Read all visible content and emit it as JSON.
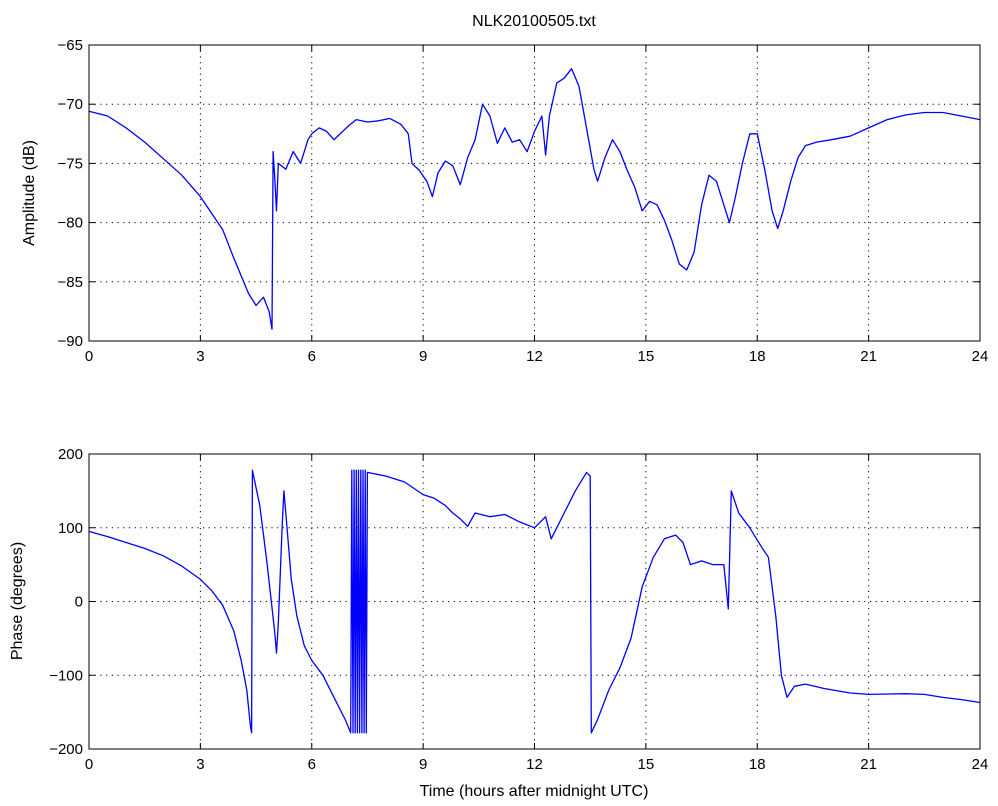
{
  "chart_data": [
    {
      "type": "line",
      "title": "NLK20100505.txt",
      "xlabel": "",
      "ylabel": "Amplitude (dB)",
      "xlim": [
        0,
        24
      ],
      "ylim": [
        -90,
        -65
      ],
      "xticks": [
        0,
        3,
        6,
        9,
        12,
        15,
        18,
        21,
        24
      ],
      "xtick_labels": [
        "0",
        "3",
        "6",
        "9",
        "12",
        "15",
        "18",
        "21",
        "24"
      ],
      "yticks": [
        -90,
        -85,
        -80,
        -75,
        -70,
        -65
      ],
      "ytick_labels": [
        "−90",
        "−85",
        "−80",
        "−75",
        "−70",
        "−65"
      ],
      "grid": true,
      "line_color": "#0000ff",
      "series": [
        {
          "points": [
            [
              0.0,
              -70.6
            ],
            [
              0.5,
              -71.0
            ],
            [
              1.0,
              -72.0
            ],
            [
              1.5,
              -73.2
            ],
            [
              2.0,
              -74.6
            ],
            [
              2.5,
              -76.0
            ],
            [
              3.0,
              -77.8
            ],
            [
              3.3,
              -79.2
            ],
            [
              3.6,
              -80.6
            ],
            [
              3.9,
              -83.0
            ],
            [
              4.1,
              -84.5
            ],
            [
              4.3,
              -86.0
            ],
            [
              4.5,
              -87.0
            ],
            [
              4.7,
              -86.3
            ],
            [
              4.85,
              -87.5
            ],
            [
              4.93,
              -89.0
            ],
            [
              4.96,
              -74.0
            ],
            [
              5.0,
              -76.0
            ],
            [
              5.05,
              -79.0
            ],
            [
              5.1,
              -75.0
            ],
            [
              5.3,
              -75.5
            ],
            [
              5.5,
              -74.0
            ],
            [
              5.7,
              -75.0
            ],
            [
              5.9,
              -73.0
            ],
            [
              6.0,
              -72.5
            ],
            [
              6.2,
              -72.0
            ],
            [
              6.4,
              -72.3
            ],
            [
              6.6,
              -73.0
            ],
            [
              6.8,
              -72.4
            ],
            [
              7.0,
              -71.8
            ],
            [
              7.2,
              -71.3
            ],
            [
              7.5,
              -71.5
            ],
            [
              7.8,
              -71.4
            ],
            [
              8.1,
              -71.2
            ],
            [
              8.4,
              -71.7
            ],
            [
              8.6,
              -72.5
            ],
            [
              8.7,
              -75.0
            ],
            [
              8.9,
              -75.6
            ],
            [
              9.1,
              -76.5
            ],
            [
              9.25,
              -77.8
            ],
            [
              9.4,
              -75.8
            ],
            [
              9.6,
              -74.8
            ],
            [
              9.8,
              -75.2
            ],
            [
              10.0,
              -76.8
            ],
            [
              10.2,
              -74.5
            ],
            [
              10.4,
              -73.0
            ],
            [
              10.6,
              -70.0
            ],
            [
              10.8,
              -71.0
            ],
            [
              11.0,
              -73.3
            ],
            [
              11.2,
              -72.0
            ],
            [
              11.4,
              -73.2
            ],
            [
              11.6,
              -73.0
            ],
            [
              11.8,
              -74.0
            ],
            [
              12.0,
              -72.3
            ],
            [
              12.2,
              -71.0
            ],
            [
              12.3,
              -74.3
            ],
            [
              12.4,
              -71.0
            ],
            [
              12.6,
              -68.2
            ],
            [
              12.8,
              -67.8
            ],
            [
              13.0,
              -67.0
            ],
            [
              13.2,
              -68.5
            ],
            [
              13.4,
              -72.0
            ],
            [
              13.6,
              -75.5
            ],
            [
              13.7,
              -76.5
            ],
            [
              13.9,
              -74.5
            ],
            [
              14.1,
              -73.0
            ],
            [
              14.3,
              -74.0
            ],
            [
              14.5,
              -75.6
            ],
            [
              14.7,
              -77.0
            ],
            [
              14.9,
              -79.0
            ],
            [
              15.1,
              -78.2
            ],
            [
              15.3,
              -78.5
            ],
            [
              15.5,
              -79.8
            ],
            [
              15.7,
              -81.5
            ],
            [
              15.9,
              -83.5
            ],
            [
              16.1,
              -84.0
            ],
            [
              16.3,
              -82.5
            ],
            [
              16.5,
              -78.5
            ],
            [
              16.7,
              -76.0
            ],
            [
              16.9,
              -76.5
            ],
            [
              17.1,
              -78.5
            ],
            [
              17.25,
              -80.0
            ],
            [
              17.4,
              -78.0
            ],
            [
              17.6,
              -75.0
            ],
            [
              17.8,
              -72.5
            ],
            [
              18.0,
              -72.5
            ],
            [
              18.2,
              -75.5
            ],
            [
              18.4,
              -79.0
            ],
            [
              18.55,
              -80.5
            ],
            [
              18.7,
              -79.0
            ],
            [
              18.9,
              -76.5
            ],
            [
              19.1,
              -74.5
            ],
            [
              19.3,
              -73.5
            ],
            [
              19.6,
              -73.2
            ],
            [
              20.0,
              -73.0
            ],
            [
              20.5,
              -72.7
            ],
            [
              21.0,
              -72.0
            ],
            [
              21.5,
              -71.3
            ],
            [
              22.0,
              -70.9
            ],
            [
              22.5,
              -70.7
            ],
            [
              23.0,
              -70.7
            ],
            [
              23.5,
              -71.0
            ],
            [
              24.0,
              -71.3
            ]
          ]
        }
      ]
    },
    {
      "type": "line",
      "title": "",
      "xlabel": "Time (hours after midnight UTC)",
      "ylabel": "Phase (degrees)",
      "xlim": [
        0,
        24
      ],
      "ylim": [
        -200,
        200
      ],
      "xticks": [
        0,
        3,
        6,
        9,
        12,
        15,
        18,
        21,
        24
      ],
      "xtick_labels": [
        "0",
        "3",
        "6",
        "9",
        "12",
        "15",
        "18",
        "21",
        "24"
      ],
      "yticks": [
        -200,
        -100,
        0,
        100,
        200
      ],
      "ytick_labels": [
        "−200",
        "−100",
        "0",
        "100",
        "200"
      ],
      "grid": true,
      "line_color": "#0000ff",
      "series": [
        {
          "points": [
            [
              0.0,
              95.0
            ],
            [
              0.5,
              88.0
            ],
            [
              1.0,
              80.0
            ],
            [
              1.5,
              72.0
            ],
            [
              2.0,
              62.0
            ],
            [
              2.5,
              48.0
            ],
            [
              3.0,
              30.0
            ],
            [
              3.3,
              15.0
            ],
            [
              3.6,
              -5.0
            ],
            [
              3.9,
              -40.0
            ],
            [
              4.1,
              -80.0
            ],
            [
              4.25,
              -120.0
            ],
            [
              4.35,
              -170.0
            ],
            [
              4.38,
              -178.0
            ],
            [
              4.4,
              178.0
            ],
            [
              4.6,
              130.0
            ],
            [
              4.8,
              50.0
            ],
            [
              5.0,
              -40.0
            ],
            [
              5.05,
              -70.0
            ],
            [
              5.1,
              -30.0
            ],
            [
              5.2,
              100.0
            ],
            [
              5.25,
              150.0
            ],
            [
              5.3,
              120.0
            ],
            [
              5.45,
              30.0
            ],
            [
              5.6,
              -20.0
            ],
            [
              5.8,
              -60.0
            ],
            [
              6.0,
              -80.0
            ],
            [
              6.3,
              -100.0
            ],
            [
              6.6,
              -130.0
            ],
            [
              6.9,
              -160.0
            ],
            [
              7.05,
              -178.0
            ],
            [
              7.08,
              178.0
            ],
            [
              7.11,
              -178.0
            ],
            [
              7.14,
              178.0
            ],
            [
              7.17,
              -178.0
            ],
            [
              7.2,
              178.0
            ],
            [
              7.23,
              -178.0
            ],
            [
              7.26,
              178.0
            ],
            [
              7.29,
              -178.0
            ],
            [
              7.32,
              178.0
            ],
            [
              7.35,
              -178.0
            ],
            [
              7.38,
              178.0
            ],
            [
              7.41,
              -178.0
            ],
            [
              7.44,
              178.0
            ],
            [
              7.47,
              -178.0
            ],
            [
              7.5,
              175.0
            ],
            [
              8.0,
              170.0
            ],
            [
              8.5,
              162.0
            ],
            [
              9.0,
              145.0
            ],
            [
              9.3,
              140.0
            ],
            [
              9.6,
              130.0
            ],
            [
              9.8,
              120.0
            ],
            [
              10.0,
              112.0
            ],
            [
              10.2,
              102.0
            ],
            [
              10.4,
              120.0
            ],
            [
              10.8,
              115.0
            ],
            [
              11.2,
              118.0
            ],
            [
              11.6,
              108.0
            ],
            [
              12.0,
              100.0
            ],
            [
              12.3,
              115.0
            ],
            [
              12.45,
              85.0
            ],
            [
              12.8,
              120.0
            ],
            [
              13.1,
              150.0
            ],
            [
              13.4,
              175.0
            ],
            [
              13.5,
              170.0
            ],
            [
              13.53,
              -178.0
            ],
            [
              13.7,
              -160.0
            ],
            [
              14.0,
              -120.0
            ],
            [
              14.3,
              -90.0
            ],
            [
              14.6,
              -50.0
            ],
            [
              14.9,
              20.0
            ],
            [
              15.2,
              60.0
            ],
            [
              15.5,
              85.0
            ],
            [
              15.8,
              90.0
            ],
            [
              16.0,
              80.0
            ],
            [
              16.2,
              50.0
            ],
            [
              16.5,
              55.0
            ],
            [
              16.8,
              50.0
            ],
            [
              17.1,
              50.0
            ],
            [
              17.22,
              -10.0
            ],
            [
              17.3,
              150.0
            ],
            [
              17.5,
              120.0
            ],
            [
              17.8,
              100.0
            ],
            [
              18.1,
              75.0
            ],
            [
              18.3,
              60.0
            ],
            [
              18.5,
              -20.0
            ],
            [
              18.65,
              -100.0
            ],
            [
              18.8,
              -130.0
            ],
            [
              19.0,
              -115.0
            ],
            [
              19.3,
              -112.0
            ],
            [
              19.8,
              -118.0
            ],
            [
              20.5,
              -124.0
            ],
            [
              21.0,
              -126.0
            ],
            [
              22.0,
              -125.0
            ],
            [
              22.5,
              -126.0
            ],
            [
              23.0,
              -130.0
            ],
            [
              23.5,
              -133.0
            ],
            [
              24.0,
              -137.0
            ]
          ]
        }
      ]
    }
  ]
}
